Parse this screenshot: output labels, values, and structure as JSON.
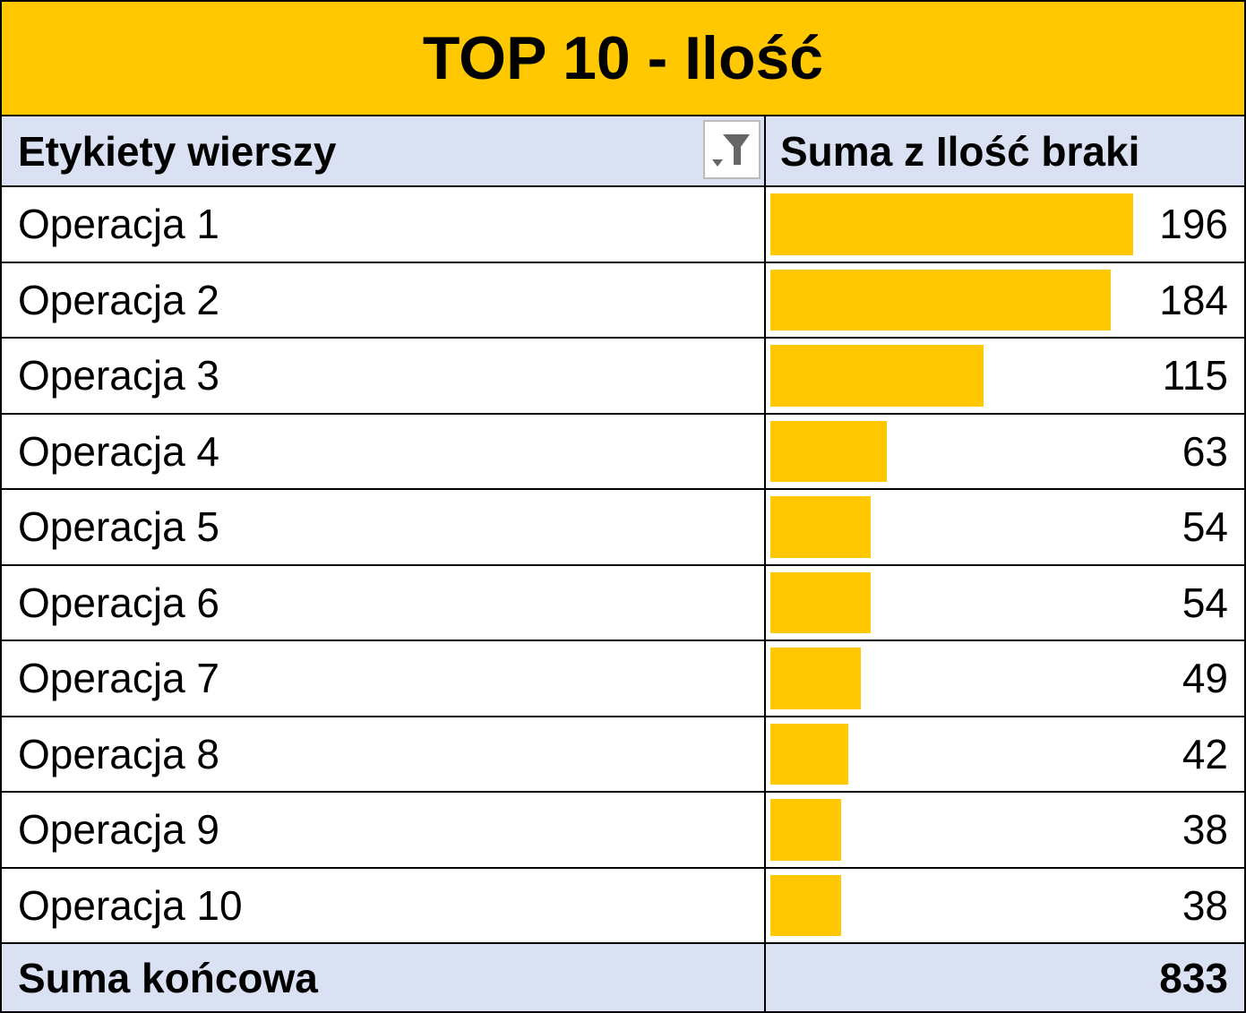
{
  "title": "TOP 10 - Ilość",
  "table": {
    "header": [
      "Etykiety wierszy",
      "Suma z Ilość braki"
    ],
    "rows": [
      [
        "Operacja 1",
        196
      ],
      [
        "Operacja 2",
        184
      ],
      [
        "Operacja 3",
        115
      ],
      [
        "Operacja 4",
        63
      ],
      [
        "Operacja 5",
        54
      ],
      [
        "Operacja 6",
        54
      ],
      [
        "Operacja 7",
        49
      ],
      [
        "Operacja 8",
        42
      ],
      [
        "Operacja 9",
        38
      ],
      [
        "Operacja 10",
        38
      ]
    ],
    "total": [
      "Suma końcowa",
      833
    ]
  }
}
